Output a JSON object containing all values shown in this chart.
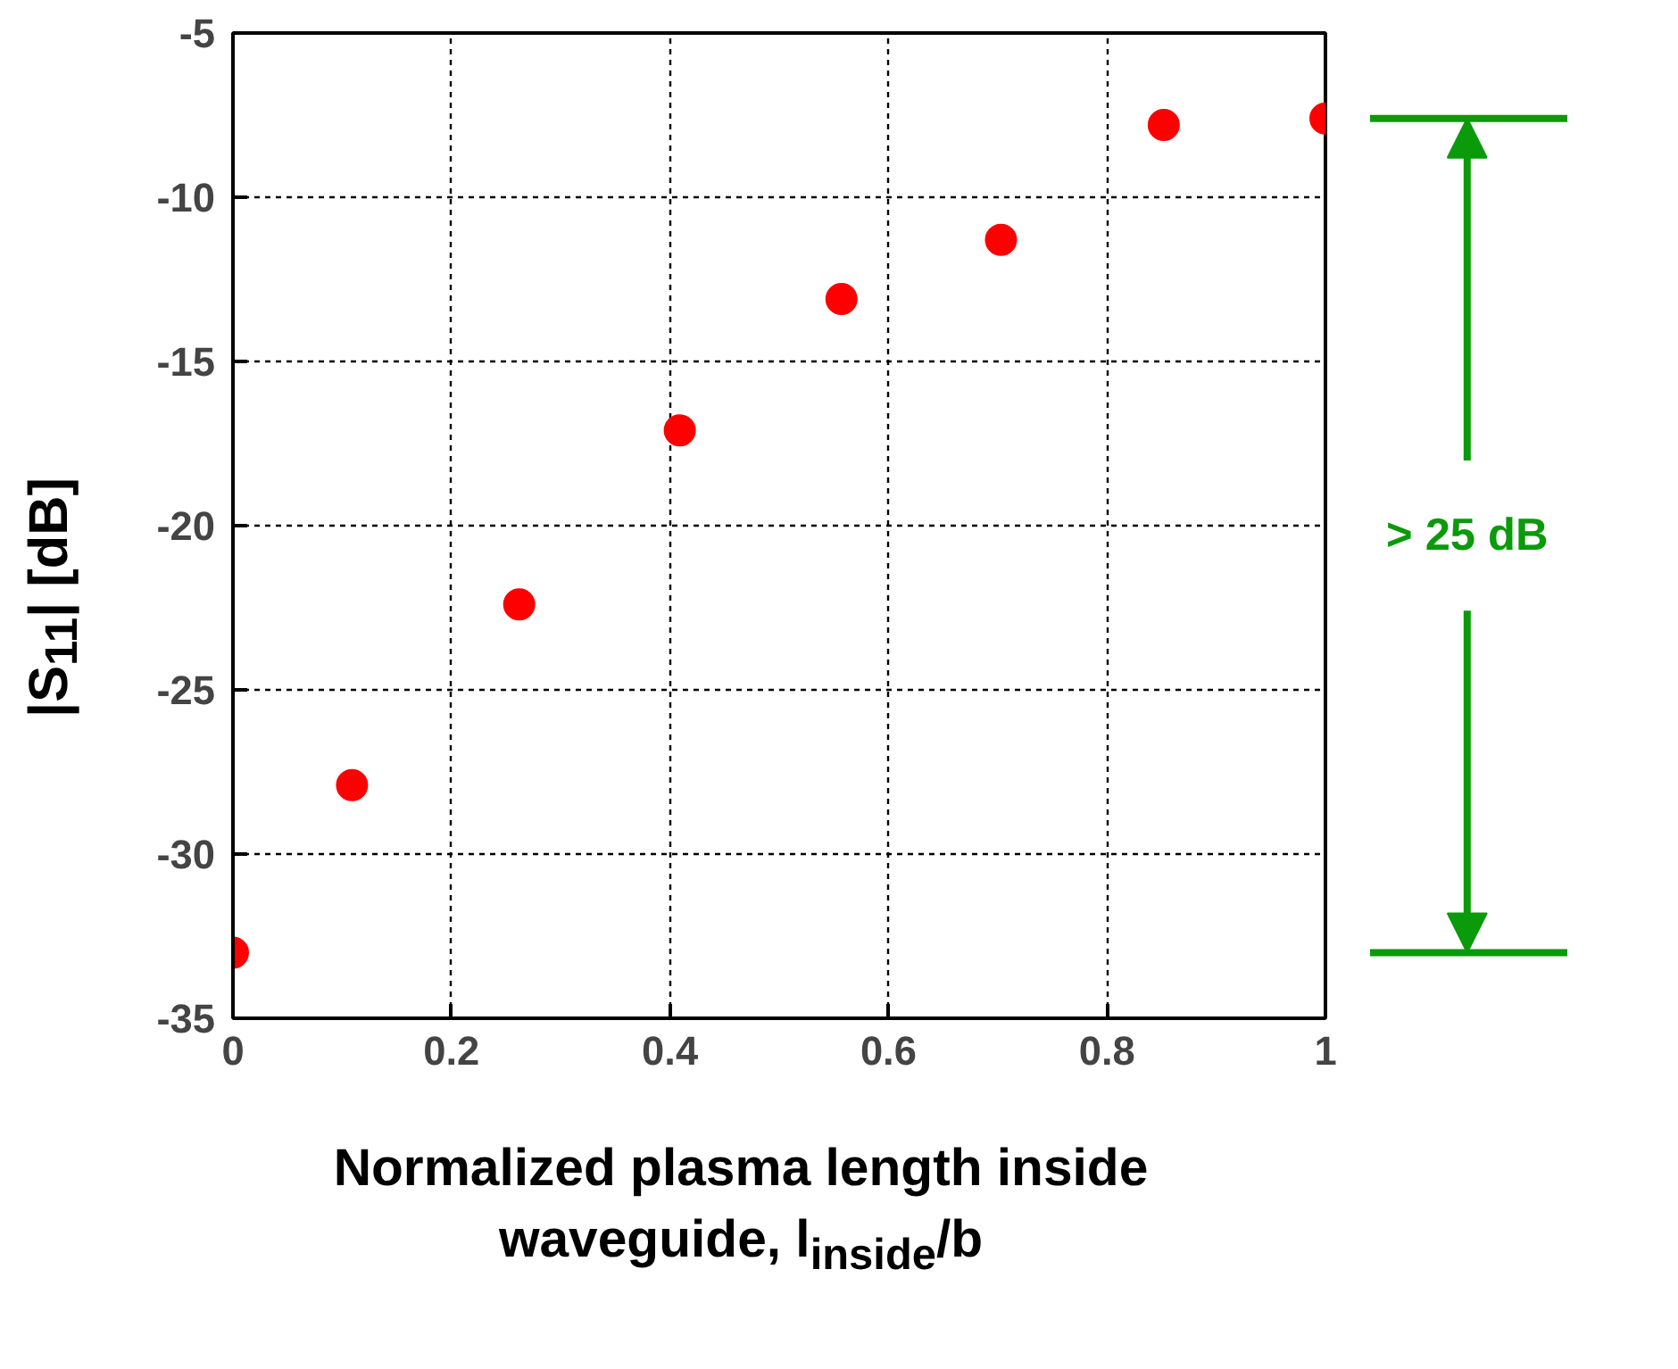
{
  "chart_data": {
    "type": "scatter",
    "x": [
      0,
      0.109,
      0.262,
      0.409,
      0.557,
      0.703,
      0.852,
      1.0
    ],
    "values": [
      -33.0,
      -27.9,
      -22.4,
      -17.1,
      -13.1,
      -11.3,
      -7.8,
      -7.6
    ],
    "color": "#ff0000",
    "marker": "circle",
    "xlim": [
      0,
      1
    ],
    "ylim": [
      -35,
      -5
    ],
    "xticks": [
      0,
      0.2,
      0.4,
      0.6,
      0.8,
      1
    ],
    "yticks": [
      -35,
      -30,
      -25,
      -20,
      -15,
      -10,
      -5
    ],
    "grid": true,
    "xlabel": "Normalized plasma length inside waveguide, l$_{inside}$/b",
    "ylabel": "|S$_{11}$| [dB]",
    "annotations": [
      "> 25 dB"
    ]
  }
}
